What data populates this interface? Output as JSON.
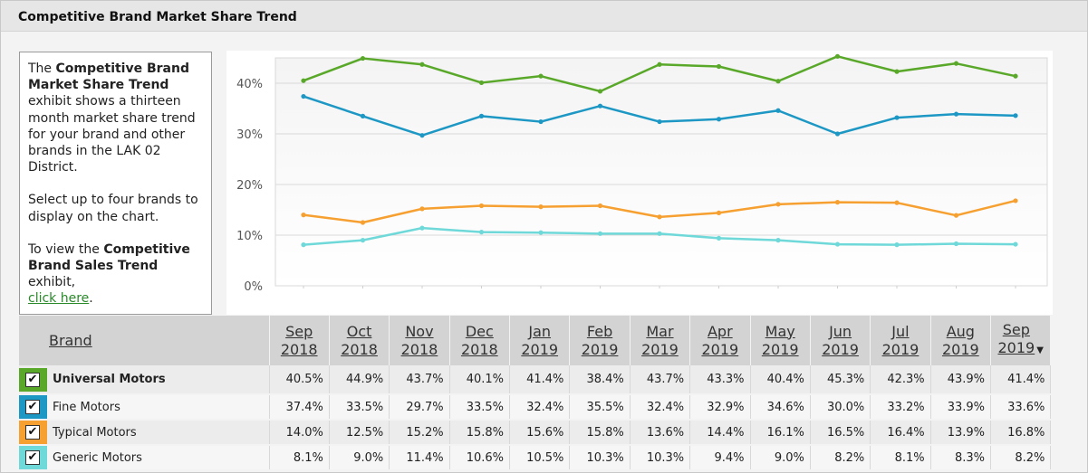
{
  "panel": {
    "title": "Competitive Brand Market Share Trend"
  },
  "description": {
    "p1_prefix": "The ",
    "p1_bold": "Competitive Brand Market Share Trend",
    "p1_suffix": " exhibit shows a thirteen month market share trend for your brand and other brands in the LAK 02 District.",
    "p2": "Select up to four brands to display on the chart.",
    "p3_prefix": "To view the ",
    "p3_bold": "Competitive Brand Sales Trend",
    "p3_suffix": " exhibit,",
    "p3_link": "click here",
    "p3_end": "."
  },
  "table": {
    "brand_header": "Brand",
    "months": [
      {
        "m": "Sep",
        "y": "2018"
      },
      {
        "m": "Oct",
        "y": "2018"
      },
      {
        "m": "Nov",
        "y": "2018"
      },
      {
        "m": "Dec",
        "y": "2018"
      },
      {
        "m": "Jan",
        "y": "2019"
      },
      {
        "m": "Feb",
        "y": "2019"
      },
      {
        "m": "Mar",
        "y": "2019"
      },
      {
        "m": "Apr",
        "y": "2019"
      },
      {
        "m": "May",
        "y": "2019"
      },
      {
        "m": "Jun",
        "y": "2019"
      },
      {
        "m": "Jul",
        "y": "2019"
      },
      {
        "m": "Aug",
        "y": "2019"
      },
      {
        "m": "Sep",
        "y": "2019"
      }
    ],
    "sort_indicator": "▼",
    "check_mark": "✔",
    "rows": [
      {
        "brand": "Universal Motors",
        "color": "#5aa82a",
        "checked": true,
        "values": [
          "40.5%",
          "44.9%",
          "43.7%",
          "40.1%",
          "41.4%",
          "38.4%",
          "43.7%",
          "43.3%",
          "40.4%",
          "45.3%",
          "42.3%",
          "43.9%",
          "41.4%"
        ]
      },
      {
        "brand": "Fine Motors",
        "color": "#1d97c4",
        "checked": true,
        "values": [
          "37.4%",
          "33.5%",
          "29.7%",
          "33.5%",
          "32.4%",
          "35.5%",
          "32.4%",
          "32.9%",
          "34.6%",
          "30.0%",
          "33.2%",
          "33.9%",
          "33.6%"
        ]
      },
      {
        "brand": "Typical Motors",
        "color": "#f6a031",
        "checked": true,
        "values": [
          "14.0%",
          "12.5%",
          "15.2%",
          "15.8%",
          "15.6%",
          "15.8%",
          "13.6%",
          "14.4%",
          "16.1%",
          "16.5%",
          "16.4%",
          "13.9%",
          "16.8%"
        ]
      },
      {
        "brand": "Generic Motors",
        "color": "#6fd8d8",
        "checked": true,
        "values": [
          "8.1%",
          "9.0%",
          "11.4%",
          "10.6%",
          "10.5%",
          "10.3%",
          "10.3%",
          "9.4%",
          "9.0%",
          "8.2%",
          "8.1%",
          "8.3%",
          "8.2%"
        ]
      }
    ]
  },
  "chart_data": {
    "type": "line",
    "title": "",
    "xlabel": "",
    "ylabel": "",
    "ylim": [
      0,
      45
    ],
    "yticks": [
      "0%",
      "10%",
      "20%",
      "30%",
      "40%"
    ],
    "ytick_values": [
      0,
      10,
      20,
      30,
      40
    ],
    "grid": true,
    "x": [
      "Sep 2018",
      "Oct 2018",
      "Nov 2018",
      "Dec 2018",
      "Jan 2019",
      "Feb 2019",
      "Mar 2019",
      "Apr 2019",
      "May 2019",
      "Jun 2019",
      "Jul 2019",
      "Aug 2019",
      "Sep 2019"
    ],
    "series": [
      {
        "name": "Universal Motors",
        "color": "#5aa82a",
        "values": [
          40.5,
          44.9,
          43.7,
          40.1,
          41.4,
          38.4,
          43.7,
          43.3,
          40.4,
          45.3,
          42.3,
          43.9,
          41.4
        ]
      },
      {
        "name": "Fine Motors",
        "color": "#1d97c4",
        "values": [
          37.4,
          33.5,
          29.7,
          33.5,
          32.4,
          35.5,
          32.4,
          32.9,
          34.6,
          30.0,
          33.2,
          33.9,
          33.6
        ]
      },
      {
        "name": "Typical Motors",
        "color": "#f6a031",
        "values": [
          14.0,
          12.5,
          15.2,
          15.8,
          15.6,
          15.8,
          13.6,
          14.4,
          16.1,
          16.5,
          16.4,
          13.9,
          16.8
        ]
      },
      {
        "name": "Generic Motors",
        "color": "#6fd8d8",
        "values": [
          8.1,
          9.0,
          11.4,
          10.6,
          10.5,
          10.3,
          10.3,
          9.4,
          9.0,
          8.2,
          8.1,
          8.3,
          8.2
        ]
      }
    ]
  }
}
